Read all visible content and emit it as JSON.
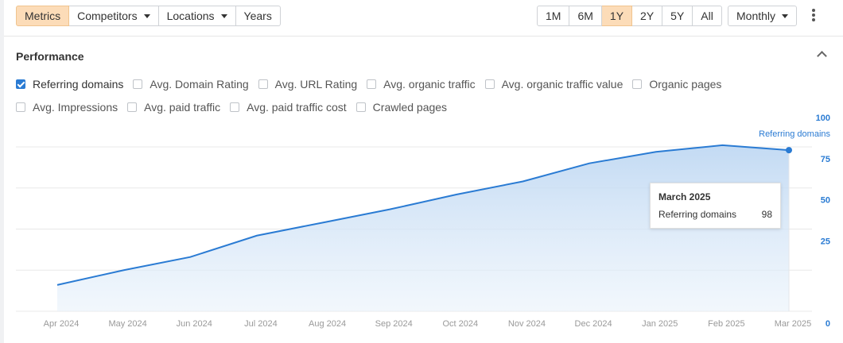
{
  "toolbar": {
    "tabs": [
      {
        "label": "Metrics",
        "active": true
      },
      {
        "label": "Competitors",
        "dropdown": true
      },
      {
        "label": "Locations",
        "dropdown": true
      },
      {
        "label": "Years"
      }
    ],
    "ranges": [
      {
        "label": "1M"
      },
      {
        "label": "6M"
      },
      {
        "label": "1Y",
        "active": true
      },
      {
        "label": "2Y"
      },
      {
        "label": "5Y"
      },
      {
        "label": "All"
      }
    ],
    "interval": "Monthly",
    "more_icon": "vertical-dots-icon"
  },
  "section": {
    "title": "Performance",
    "collapse_icon": "chevron-up-icon"
  },
  "metrics": [
    {
      "label": "Referring domains",
      "checked": true
    },
    {
      "label": "Avg. Domain Rating",
      "checked": false
    },
    {
      "label": "Avg. URL Rating",
      "checked": false
    },
    {
      "label": "Avg. organic traffic",
      "checked": false
    },
    {
      "label": "Avg. organic traffic value",
      "checked": false
    },
    {
      "label": "Organic pages",
      "checked": false
    },
    {
      "label": "Avg. Impressions",
      "checked": false
    },
    {
      "label": "Avg. paid traffic",
      "checked": false
    },
    {
      "label": "Avg. paid traffic cost",
      "checked": false
    },
    {
      "label": "Crawled pages",
      "checked": false
    }
  ],
  "tooltip": {
    "title": "March 2025",
    "series": "Referring domains",
    "value": "98"
  },
  "colors": {
    "accent": "#2a7bd3",
    "active_tab": "#fcdcb8"
  },
  "chart_data": {
    "type": "area",
    "x": [
      "Apr 2024",
      "May 2024",
      "Jun 2024",
      "Jul 2024",
      "Aug 2024",
      "Sep 2024",
      "Oct 2024",
      "Nov 2024",
      "Dec 2024",
      "Jan 2025",
      "Feb 2025",
      "Mar 2025"
    ],
    "series": [
      {
        "name": "Referring domains",
        "values": [
          16,
          25,
          33,
          46,
          54,
          62,
          71,
          79,
          90,
          97,
          101,
          98
        ]
      }
    ],
    "ylim": [
      0,
      100
    ],
    "yticks": [
      0,
      25,
      50,
      75,
      100
    ],
    "y_axis_side": "right",
    "grid": true,
    "legend": "top-right",
    "highlighted_point": "Mar 2025"
  }
}
